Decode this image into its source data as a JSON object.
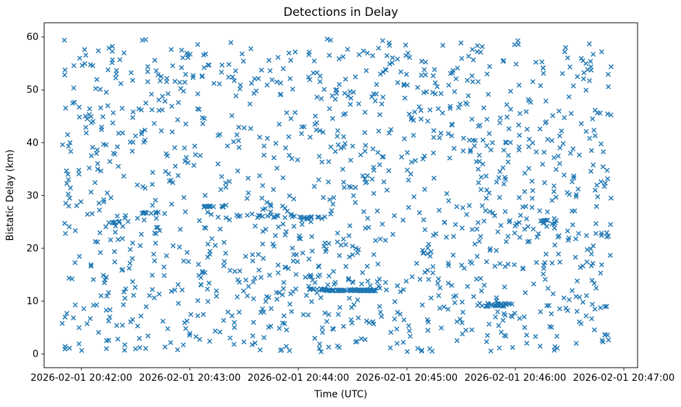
{
  "figure": {
    "title": "Detections in Delay",
    "xlabel": "Time (UTC)",
    "ylabel": "Bistatic Delay (km)"
  },
  "chart_data": {
    "type": "scatter",
    "title": "Detections in Delay",
    "xlabel": "Time (UTC)",
    "ylabel": "Bistatic Delay (km)",
    "marker": "x",
    "marker_color": "#1f77b4",
    "background_color": "#ffffff",
    "grid": false,
    "legend": false,
    "x_time_reference": "2026-02-01 20:42:00",
    "x_ticks_seconds": [
      0,
      60,
      120,
      180,
      240,
      300
    ],
    "x_tick_labels": [
      "2026-02-01 20:42:00",
      "2026-02-01 20:43:00",
      "2026-02-01 20:44:00",
      "2026-02-01 20:45:00",
      "2026-02-01 20:46:00",
      "2026-02-01 20:47:00"
    ],
    "y_ticks": [
      0,
      10,
      20,
      30,
      40,
      50,
      60
    ],
    "y_tick_labels": [
      "0",
      "10",
      "20",
      "30",
      "40",
      "50",
      "60"
    ],
    "xlim_seconds": [
      -20.6,
      307.6
    ],
    "ylim": [
      -2.6,
      62.7
    ],
    "x_data_span": [
      "2026-02-01 20:41:49",
      "2026-02-01 20:46:53"
    ],
    "y_data_span": [
      0.4,
      59.7
    ],
    "points_total_approx": 1560,
    "scatter_distribution": {
      "random_seed": 20260201,
      "uniform_count": 1350,
      "x_seconds_range": [
        -11,
        293
      ],
      "y_range": [
        0.4,
        59.7
      ]
    },
    "dense_streaks": [
      {
        "label": "solid-track-12km",
        "y": 12.05,
        "y_jitter": 0.12,
        "t_start": 133,
        "t_end": 163,
        "count": 90
      },
      {
        "label": "track-12.3km",
        "y": 12.3,
        "y_jitter": 0.15,
        "t_start": 126,
        "t_end": 135,
        "count": 10
      },
      {
        "label": "cluster-9.3km",
        "y": 9.3,
        "y_jitter": 0.3,
        "t_start": 219,
        "t_end": 238,
        "count": 30
      },
      {
        "label": "track-27.9km",
        "y": 27.9,
        "y_jitter": 0.12,
        "t_start": 67,
        "t_end": 79,
        "count": 16
      },
      {
        "label": "track-24.9km",
        "y": 24.9,
        "y_jitter": 0.12,
        "t_start": 16,
        "t_end": 24,
        "count": 8
      },
      {
        "label": "track-26.7km",
        "y": 26.7,
        "y_jitter": 0.15,
        "t_start": 33,
        "t_end": 48,
        "count": 12
      },
      {
        "label": "cluster-25.8km",
        "y": 25.8,
        "y_jitter": 0.35,
        "t_start": 120,
        "t_end": 135,
        "count": 14
      },
      {
        "label": "track-26.1km",
        "y": 26.1,
        "y_jitter": 0.3,
        "t_start": 86,
        "t_end": 118,
        "count": 14
      },
      {
        "label": "cluster-25km",
        "y": 25.0,
        "y_jitter": 0.4,
        "t_start": 254,
        "t_end": 263,
        "count": 12
      }
    ]
  }
}
